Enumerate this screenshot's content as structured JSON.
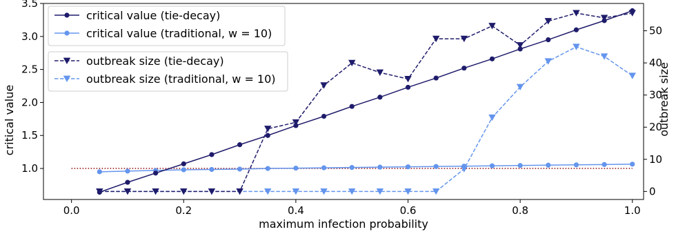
{
  "chart_data": {
    "type": "line",
    "xlabel": "maximum infection probability",
    "ylabel_left": "critical value",
    "ylabel_right": "outbreak size",
    "x_ticks": [
      "0.0",
      "0.2",
      "0.4",
      "0.6",
      "0.8",
      "1.0"
    ],
    "y_left_ticks": [
      "1.0",
      "1.5",
      "2.0",
      "2.5",
      "3.0",
      "3.5"
    ],
    "y_right_ticks": [
      "0",
      "10",
      "20",
      "30",
      "40",
      "50"
    ],
    "xlim": [
      -0.05,
      1.02
    ],
    "ylim_left": [
      0.53,
      3.5
    ],
    "ylim_right": [
      -2.5,
      58.5
    ],
    "grid": false,
    "reference_line": {
      "y": 1.0,
      "axis": "left",
      "color": "#8b0000",
      "style": "dotted"
    },
    "x": [
      0.05,
      0.1,
      0.15,
      0.2,
      0.25,
      0.3,
      0.35,
      0.4,
      0.45,
      0.5,
      0.55,
      0.6,
      0.65,
      0.7,
      0.75,
      0.8,
      0.85,
      0.9,
      0.95,
      1.0
    ],
    "series": [
      {
        "name": "critical value (tie-decay)",
        "axis": "left",
        "color": "#1f1c6b",
        "line": "solid",
        "marker": "circle",
        "values": [
          0.64,
          0.79,
          0.93,
          1.07,
          1.21,
          1.36,
          1.5,
          1.65,
          1.79,
          1.94,
          2.08,
          2.23,
          2.37,
          2.52,
          2.66,
          2.81,
          2.95,
          3.1,
          3.24,
          3.39
        ]
      },
      {
        "name": "critical value (traditional, w = 10)",
        "axis": "left",
        "color": "#6495ed",
        "line": "solid",
        "marker": "circle",
        "values": [
          0.95,
          0.96,
          0.97,
          0.98,
          0.985,
          0.99,
          1.0,
          1.005,
          1.01,
          1.015,
          1.02,
          1.025,
          1.03,
          1.035,
          1.04,
          1.045,
          1.05,
          1.055,
          1.06,
          1.065
        ]
      },
      {
        "name": "outbreak size (tie-decay)",
        "axis": "right",
        "color": "#1f1c6b",
        "line": "dashed",
        "marker": "triangle-down",
        "values": [
          0,
          0,
          0,
          0,
          0,
          0,
          19.5,
          21.5,
          33,
          40,
          37,
          35,
          47.5,
          47.5,
          51.5,
          45.5,
          53,
          55.5,
          54,
          55.5
        ]
      },
      {
        "name": "outbreak size (traditional, w = 10)",
        "axis": "right",
        "color": "#6495ed",
        "line": "dashed",
        "marker": "triangle-down",
        "values": [
          0,
          0,
          0,
          0,
          0,
          0,
          0,
          0,
          0,
          0,
          0,
          0,
          0,
          7,
          23,
          32.5,
          40.5,
          45,
          42,
          36
        ]
      }
    ],
    "legends": [
      {
        "placement": "upper-left",
        "entries": [
          "critical value (tie-decay)",
          "critical value (traditional, w = 10)"
        ]
      },
      {
        "placement": "upper-left-below",
        "entries": [
          "outbreak size (tie-decay)",
          "outbreak size (traditional, w = 10)"
        ]
      }
    ]
  }
}
